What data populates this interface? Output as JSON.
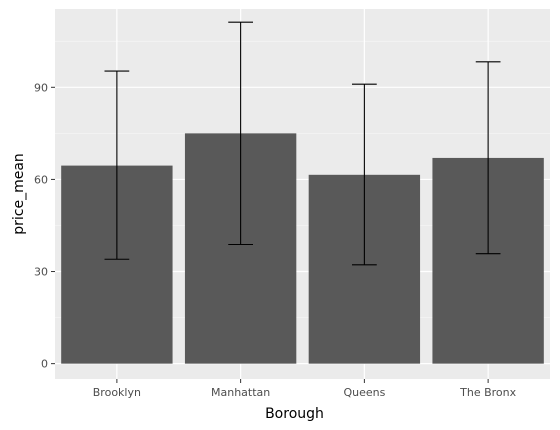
{
  "chart_data": {
    "type": "bar",
    "title": "",
    "xlabel": "Borough",
    "ylabel": "price_mean",
    "categories": [
      "Brooklyn",
      "Manhattan",
      "Queens",
      "The Bronx"
    ],
    "values": [
      64.5,
      75.0,
      61.5,
      67.0
    ],
    "error_bars": [
      {
        "lower": 34.0,
        "upper": 95.3
      },
      {
        "lower": 38.8,
        "upper": 111.2
      },
      {
        "lower": 32.2,
        "upper": 91.0
      },
      {
        "lower": 35.8,
        "upper": 98.3
      }
    ],
    "ylim": [
      -5,
      115.5
    ],
    "yticks": [
      0,
      30,
      60,
      90
    ],
    "ytick_labels": [
      "0",
      "30",
      "60",
      "90"
    ],
    "grid": true,
    "legend": "none",
    "colors": {
      "panel_background": "#ebebeb",
      "grid_major": "#ffffff",
      "grid_minor": "#f5f5f5",
      "bar_fill": "#595959",
      "error_bar": "#000000"
    }
  }
}
